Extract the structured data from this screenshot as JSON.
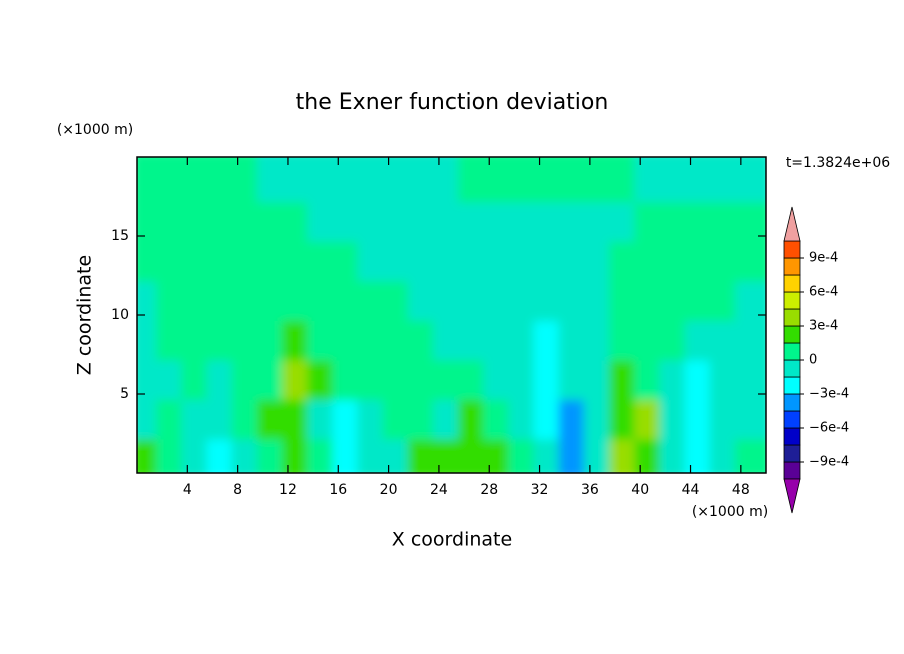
{
  "chart_data": {
    "type": "contour",
    "title": "the Exner function deviation",
    "x_label": "X coordinate",
    "y_label": "Z coordinate",
    "x_unit": "(×1000 m)",
    "y_unit": "(×1000 m)",
    "annotation": "t=1.3824e+06",
    "x": [
      1,
      3,
      5,
      7,
      9,
      11,
      13,
      15,
      17,
      19,
      21,
      23,
      25,
      27,
      29,
      31,
      33,
      35,
      37,
      39,
      41,
      43,
      45,
      47,
      49
    ],
    "y": [
      1.25,
      3.75,
      6.25,
      8.75,
      11.25,
      13.75,
      16.25,
      18.75
    ],
    "z": [
      [
        0.0002,
        7e-05,
        -7e-05,
        -0.0002,
        -7e-05,
        7e-05,
        0.0002,
        7e-05,
        -0.0002,
        -7e-05,
        -7e-05,
        0.0002,
        0.0002,
        0.0002,
        0.0002,
        7e-05,
        -7e-05,
        -0.00035,
        -7e-05,
        0.00035,
        0.0002,
        -7e-05,
        -0.0002,
        -7e-05,
        7e-05
      ],
      [
        -7e-05,
        7e-05,
        -7e-05,
        -7e-05,
        7e-05,
        0.0002,
        0.0002,
        -7e-05,
        -0.0002,
        -7e-05,
        7e-05,
        7e-05,
        -7e-05,
        0.0002,
        7e-05,
        -7e-05,
        -0.0002,
        -0.00035,
        -7e-05,
        0.0002,
        0.00035,
        -7e-05,
        -0.0002,
        -7e-05,
        -7e-05
      ],
      [
        -7e-05,
        -7e-05,
        7e-05,
        -7e-05,
        7e-05,
        7e-05,
        0.00035,
        0.0002,
        7e-05,
        7e-05,
        7e-05,
        7e-05,
        7e-05,
        7e-05,
        -7e-05,
        -7e-05,
        -0.0002,
        -7e-05,
        -7e-05,
        0.0002,
        7e-05,
        -7e-05,
        -0.0002,
        -7e-05,
        -7e-05
      ],
      [
        -7e-05,
        7e-05,
        7e-05,
        7e-05,
        7e-05,
        7e-05,
        0.0002,
        7e-05,
        7e-05,
        7e-05,
        7e-05,
        7e-05,
        -7e-05,
        -7e-05,
        -7e-05,
        -7e-05,
        -0.0002,
        -7e-05,
        -7e-05,
        7e-05,
        7e-05,
        7e-05,
        -7e-05,
        -7e-05,
        -7e-05
      ],
      [
        -7e-05,
        7e-05,
        7e-05,
        7e-05,
        7e-05,
        7e-05,
        7e-05,
        7e-05,
        7e-05,
        7e-05,
        7e-05,
        -7e-05,
        -7e-05,
        -7e-05,
        -7e-05,
        -7e-05,
        -7e-05,
        -7e-05,
        -7e-05,
        7e-05,
        7e-05,
        7e-05,
        7e-05,
        7e-05,
        -7e-05
      ],
      [
        7e-05,
        7e-05,
        7e-05,
        7e-05,
        7e-05,
        7e-05,
        7e-05,
        7e-05,
        7e-05,
        -7e-05,
        -7e-05,
        -7e-05,
        -7e-05,
        -7e-05,
        -7e-05,
        -7e-05,
        -7e-05,
        -7e-05,
        -7e-05,
        7e-05,
        7e-05,
        7e-05,
        7e-05,
        7e-05,
        7e-05
      ],
      [
        7e-05,
        7e-05,
        7e-05,
        7e-05,
        7e-05,
        7e-05,
        7e-05,
        -7e-05,
        -7e-05,
        -7e-05,
        -7e-05,
        -7e-05,
        -7e-05,
        -7e-05,
        -7e-05,
        -7e-05,
        -7e-05,
        -7e-05,
        -7e-05,
        -7e-05,
        7e-05,
        7e-05,
        7e-05,
        7e-05,
        7e-05
      ],
      [
        7e-05,
        7e-05,
        7e-05,
        7e-05,
        7e-05,
        -7e-05,
        -7e-05,
        -7e-05,
        -7e-05,
        -7e-05,
        -7e-05,
        -7e-05,
        -7e-05,
        7e-05,
        7e-05,
        7e-05,
        7e-05,
        7e-05,
        7e-05,
        7e-05,
        -7e-05,
        -7e-05,
        -7e-05,
        -7e-05,
        -7e-05
      ]
    ],
    "xlim": [
      0,
      50
    ],
    "ylim": [
      0,
      20
    ],
    "xticks": [
      4,
      8,
      12,
      16,
      20,
      24,
      28,
      32,
      36,
      40,
      44,
      48
    ],
    "yticks": [
      5,
      10,
      15
    ],
    "colorbar": {
      "levels": [
        -0.00105,
        -0.0009,
        -0.00075,
        -0.0006,
        -0.00045,
        -0.0003,
        -0.00015,
        0,
        0.00015,
        0.0003,
        0.00045,
        0.0006,
        0.00075,
        0.0009,
        0.00105
      ],
      "colors": [
        "#5a0096",
        "#1e1e96",
        "#0000c8",
        "#0040ff",
        "#0096ff",
        "#00ffff",
        "#00e8c8",
        "#00f58c",
        "#33dd00",
        "#99dd00",
        "#ccee00",
        "#ffd200",
        "#ff9600",
        "#ff5000",
        "#ff1e1e"
      ],
      "under_color": "#9600aa",
      "over_color": "#f0a0a0",
      "ticks": [
        {
          "value": 0.0009,
          "label": "9e-4"
        },
        {
          "value": 0.0006,
          "label": "6e-4"
        },
        {
          "value": 0.0003,
          "label": "3e-4"
        },
        0,
        {
          "value": -0.0003,
          "label": "−3e-4"
        },
        {
          "value": -0.0006,
          "label": "−6e-4"
        },
        {
          "value": -0.0009,
          "label": "−9e-4"
        }
      ]
    }
  }
}
